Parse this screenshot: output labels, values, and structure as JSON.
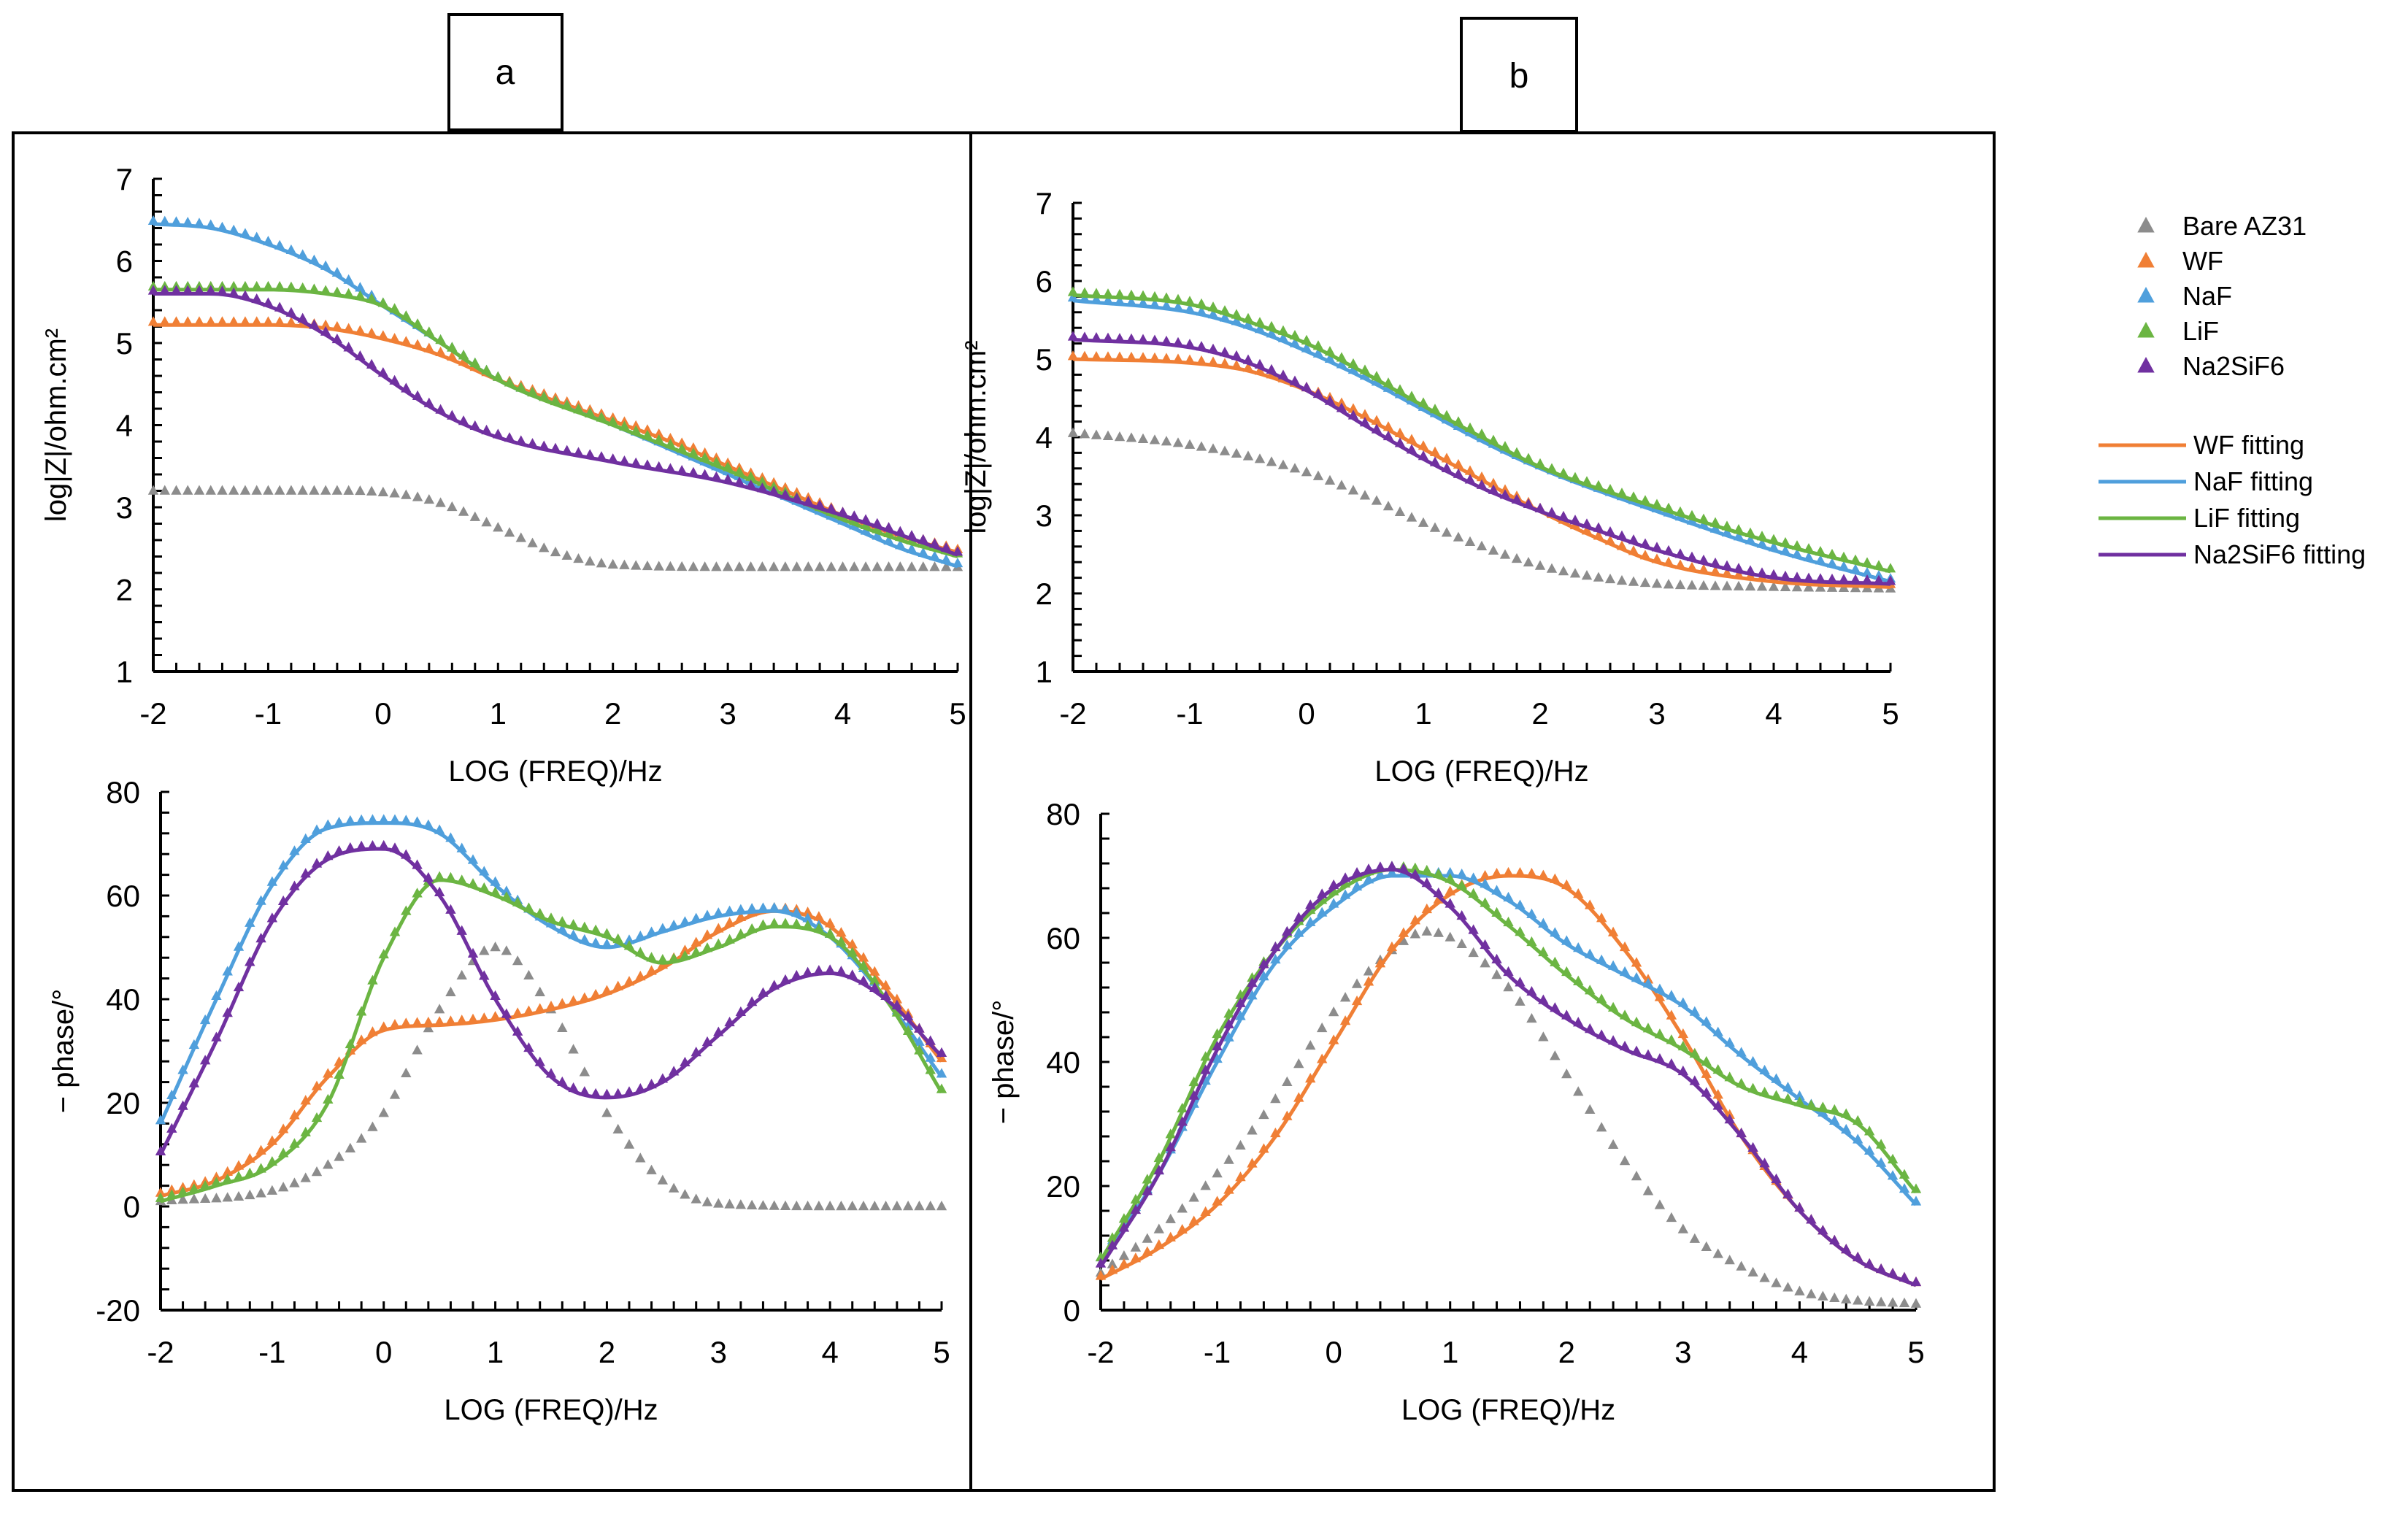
{
  "colors": {
    "Bare AZ31": "#8c8c8c",
    "WF": "#f07f35",
    "NaF": "#4f9fdc",
    "LiF": "#6bb542",
    "Na2SiF6": "#7030a0"
  },
  "panels": [
    {
      "label": "a"
    },
    {
      "label": "b"
    }
  ],
  "legend": {
    "markers": [
      "Bare AZ31",
      "WF",
      "NaF",
      "LiF",
      "Na2SiF6"
    ],
    "lines": [
      "WF fitting",
      "NaF fitting",
      "LiF fitting",
      "Na2SiF6 fitting"
    ]
  },
  "chart_data": [
    {
      "id": "a-mag",
      "panel": "a",
      "type": "line",
      "xlabel": "LOG (FREQ)/Hz",
      "ylabel": "log|Z|/ohm.cm²",
      "xlim": [
        -2,
        5
      ],
      "ylim": [
        1,
        7
      ],
      "xticks": [
        -2,
        -1,
        0,
        1,
        2,
        3,
        4,
        5
      ],
      "yticks": [
        1,
        2,
        3,
        4,
        5,
        6,
        7
      ],
      "series": [
        {
          "name": "Bare AZ31",
          "x": [
            -2,
            -1,
            -0.5,
            0,
            0.5,
            1,
            1.5,
            2,
            3,
            4,
            5
          ],
          "y": [
            3.2,
            3.2,
            3.2,
            3.18,
            3.05,
            2.75,
            2.45,
            2.3,
            2.27,
            2.27,
            2.27
          ]
        },
        {
          "name": "WF",
          "x": [
            -2,
            -1,
            -0.5,
            0,
            0.5,
            1,
            2,
            2.5,
            3,
            3.5,
            4,
            4.5,
            5
          ],
          "y": [
            5.22,
            5.22,
            5.18,
            5.05,
            4.85,
            4.55,
            4.05,
            3.8,
            3.5,
            3.2,
            2.9,
            2.65,
            2.45
          ]
        },
        {
          "name": "NaF",
          "x": [
            -2,
            -1.5,
            -1,
            -0.5,
            0,
            0.5,
            1,
            2,
            3,
            4,
            4.5,
            5
          ],
          "y": [
            6.45,
            6.4,
            6.2,
            5.9,
            5.45,
            5.0,
            4.55,
            4.0,
            3.4,
            2.8,
            2.5,
            2.28
          ]
        },
        {
          "name": "LiF",
          "x": [
            -2,
            -1,
            -0.5,
            0,
            0.5,
            1,
            2,
            3,
            4,
            4.5,
            5
          ],
          "y": [
            5.65,
            5.65,
            5.6,
            5.45,
            5.0,
            4.55,
            4.0,
            3.45,
            2.85,
            2.6,
            2.4
          ]
        },
        {
          "name": "Na2SiF6",
          "x": [
            -2,
            -1.5,
            -1,
            -0.5,
            0,
            0.5,
            1,
            2,
            3,
            4,
            5
          ],
          "y": [
            5.6,
            5.6,
            5.45,
            5.1,
            4.6,
            4.15,
            3.85,
            3.55,
            3.3,
            2.9,
            2.42
          ]
        }
      ]
    },
    {
      "id": "a-phase",
      "panel": "a",
      "type": "line",
      "xlabel": "LOG (FREQ)/Hz",
      "ylabel": "− phase/°",
      "xlim": [
        -2,
        5
      ],
      "ylim": [
        -20,
        80
      ],
      "xticks": [
        -2,
        -1,
        0,
        1,
        2,
        3,
        4,
        5
      ],
      "yticks": [
        -20,
        0,
        20,
        40,
        60,
        80
      ],
      "series": [
        {
          "name": "Bare AZ31",
          "x": [
            -2,
            -1,
            -0.5,
            0,
            0.5,
            1,
            1.5,
            2,
            2.5,
            3,
            4,
            5
          ],
          "y": [
            1,
            3,
            8,
            18,
            38,
            50,
            38,
            18,
            5,
            0.5,
            0,
            0
          ]
        },
        {
          "name": "WF",
          "x": [
            -2,
            -1.5,
            -1,
            -0.5,
            0,
            0.5,
            1,
            1.5,
            2,
            2.5,
            3,
            3.5,
            4,
            4.5,
            5
          ],
          "y": [
            2,
            5,
            12,
            25,
            34,
            35,
            36,
            38,
            41,
            46,
            53,
            57,
            54,
            42,
            28
          ]
        },
        {
          "name": "NaF",
          "x": [
            -2,
            -1.5,
            -1,
            -0.5,
            0,
            0.5,
            1,
            1.5,
            2,
            2.5,
            3,
            3.5,
            4,
            4.5,
            5
          ],
          "y": [
            16,
            40,
            62,
            73,
            74,
            72,
            62,
            54,
            50,
            53,
            56,
            57,
            52,
            40,
            25
          ]
        },
        {
          "name": "LiF",
          "x": [
            -2,
            -1.5,
            -1,
            -0.5,
            0,
            0.5,
            1,
            1.5,
            2,
            2.5,
            3,
            3.5,
            4,
            4.5,
            5
          ],
          "y": [
            1,
            4,
            8,
            20,
            48,
            63,
            60,
            55,
            52,
            47,
            50,
            54,
            52,
            40,
            22
          ]
        },
        {
          "name": "Na2SiF6",
          "x": [
            -2,
            -1.5,
            -1,
            -0.5,
            0,
            0.5,
            1,
            1.5,
            2,
            2.5,
            3,
            3.5,
            4,
            4.5,
            5
          ],
          "y": [
            10,
            32,
            55,
            67,
            69,
            60,
            40,
            25,
            21,
            24,
            33,
            42,
            45,
            40,
            29
          ]
        }
      ]
    },
    {
      "id": "b-mag",
      "panel": "b",
      "type": "line",
      "xlabel": "LOG (FREQ)/Hz",
      "ylabel": "log|Z|/ohm.cm²",
      "xlim": [
        -2,
        5
      ],
      "ylim": [
        1,
        7
      ],
      "xticks": [
        -2,
        -1,
        0,
        1,
        2,
        3,
        4,
        5
      ],
      "yticks": [
        1,
        2,
        3,
        4,
        5,
        6,
        7
      ],
      "series": [
        {
          "name": "Bare AZ31",
          "x": [
            -2,
            -1,
            0,
            0.5,
            1,
            1.5,
            2,
            2.5,
            3,
            4,
            5
          ],
          "y": [
            4.05,
            3.9,
            3.55,
            3.25,
            2.9,
            2.6,
            2.35,
            2.2,
            2.12,
            2.08,
            2.06
          ]
        },
        {
          "name": "WF",
          "x": [
            -2,
            -1,
            -0.5,
            0,
            0.5,
            1,
            1.5,
            2,
            2.5,
            3,
            4,
            5
          ],
          "y": [
            5.0,
            4.95,
            4.85,
            4.6,
            4.25,
            3.85,
            3.45,
            3.05,
            2.7,
            2.4,
            2.15,
            2.08
          ]
        },
        {
          "name": "NaF",
          "x": [
            -2,
            -1,
            -0.5,
            0,
            0.5,
            1,
            1.5,
            2,
            3,
            4,
            5
          ],
          "y": [
            5.75,
            5.6,
            5.4,
            5.1,
            4.75,
            4.35,
            3.95,
            3.6,
            3.05,
            2.55,
            2.15
          ]
        },
        {
          "name": "LiF",
          "x": [
            -2,
            -1,
            -0.5,
            0,
            0.5,
            1,
            1.5,
            2,
            3,
            4,
            5
          ],
          "y": [
            5.82,
            5.7,
            5.48,
            5.2,
            4.82,
            4.4,
            4.0,
            3.62,
            3.1,
            2.65,
            2.28
          ]
        },
        {
          "name": "Na2SiF6",
          "x": [
            -2,
            -1,
            -0.5,
            0,
            0.5,
            1,
            1.5,
            2,
            2.5,
            3,
            4,
            5
          ],
          "y": [
            5.25,
            5.15,
            4.95,
            4.6,
            4.15,
            3.72,
            3.35,
            3.05,
            2.8,
            2.55,
            2.2,
            2.12
          ]
        }
      ]
    },
    {
      "id": "b-phase",
      "panel": "b",
      "type": "line",
      "xlabel": "LOG (FREQ)/Hz",
      "ylabel": "− phase/°",
      "xlim": [
        -2,
        5
      ],
      "ylim": [
        0,
        80
      ],
      "xticks": [
        -2,
        -1,
        0,
        1,
        2,
        3,
        4,
        5
      ],
      "yticks": [
        0,
        20,
        40,
        60,
        80
      ],
      "series": [
        {
          "name": "Bare AZ31",
          "x": [
            -2,
            -1.5,
            -1,
            -0.5,
            0,
            0.5,
            0.8,
            1.5,
            2,
            2.5,
            3,
            3.5,
            4,
            4.5,
            5
          ],
          "y": [
            6,
            13,
            22,
            34,
            48,
            58,
            61,
            52,
            38,
            24,
            13,
            7,
            3,
            1.5,
            1
          ]
        },
        {
          "name": "WF",
          "x": [
            -2,
            -1.5,
            -1,
            -0.5,
            0,
            0.5,
            1,
            1.5,
            2,
            2.5,
            3,
            3.5,
            4,
            4.5,
            5
          ],
          "y": [
            5,
            10,
            17,
            28,
            43,
            58,
            67,
            70,
            68,
            58,
            44,
            28,
            16,
            8,
            4
          ]
        },
        {
          "name": "NaF",
          "x": [
            -2,
            -1.5,
            -1,
            -0.5,
            0,
            0.5,
            1,
            1.5,
            2,
            2.5,
            3,
            3.5,
            4,
            4.5,
            5
          ],
          "y": [
            8,
            22,
            40,
            56,
            65,
            70,
            70,
            66,
            59,
            54,
            49,
            41,
            34,
            27,
            17
          ]
        },
        {
          "name": "LiF",
          "x": [
            -2,
            -1.5,
            -1,
            -0.5,
            0,
            0.5,
            1,
            1.5,
            2,
            2.5,
            3,
            3.5,
            4,
            4.5,
            5
          ],
          "y": [
            8,
            24,
            44,
            58,
            67,
            71,
            69,
            62,
            54,
            47,
            42,
            36,
            33,
            30,
            19
          ]
        },
        {
          "name": "Na2SiF6",
          "x": [
            -2,
            -1.5,
            -1,
            -0.5,
            0,
            0.5,
            1,
            1.5,
            2,
            2.5,
            3,
            3.5,
            4,
            4.5,
            5
          ],
          "y": [
            7,
            22,
            42,
            58,
            68,
            71,
            65,
            54,
            47,
            42,
            38,
            28,
            16,
            8,
            4
          ]
        }
      ]
    }
  ]
}
